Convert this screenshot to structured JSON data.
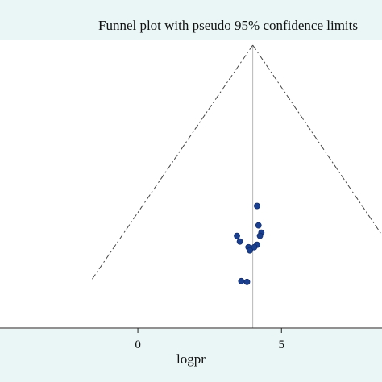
{
  "chart_data": {
    "type": "scatter",
    "title": "Funnel plot with pseudo 95% confidence limits",
    "xlabel": "logpr",
    "ylabel": "",
    "x_ticks": [
      0,
      5
    ],
    "xlim": [
      -4.8,
      8.5
    ],
    "ylim": [
      0,
      3.5
    ],
    "y_reversed": true,
    "pooled_estimate": 4,
    "funnel": {
      "apex": [
        4,
        0
      ],
      "left_end": [
        -1.6,
        2.9
      ],
      "right_end": [
        8.5,
        2.35
      ]
    },
    "points": [
      {
        "x": 4.15,
        "y": 1.99
      },
      {
        "x": 4.2,
        "y": 2.23
      },
      {
        "x": 4.3,
        "y": 2.32
      },
      {
        "x": 4.25,
        "y": 2.36
      },
      {
        "x": 3.45,
        "y": 2.36
      },
      {
        "x": 3.55,
        "y": 2.43
      },
      {
        "x": 4.15,
        "y": 2.47
      },
      {
        "x": 4.05,
        "y": 2.5
      },
      {
        "x": 3.85,
        "y": 2.5
      },
      {
        "x": 3.9,
        "y": 2.54
      },
      {
        "x": 3.6,
        "y": 2.92
      },
      {
        "x": 3.8,
        "y": 2.93
      }
    ],
    "marker_color": "#1a3f8f",
    "grid": false,
    "legend": "none"
  }
}
